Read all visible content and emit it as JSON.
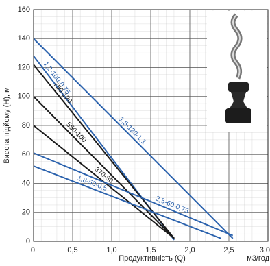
{
  "chart_data": {
    "type": "line",
    "y_label": "Висота підйому (H), м",
    "x_label": "Продуктивність (Q)",
    "x_unit": "м3/год",
    "xlim": [
      0,
      3.0
    ],
    "xticks": [
      0,
      {
        "value": 0.5,
        "label": "0,5"
      },
      {
        "value": 1.0,
        "label": "1,0"
      },
      {
        "value": 1.5,
        "label": "1,5"
      },
      {
        "value": 2.0,
        "label": "2,0"
      },
      {
        "value": 2.5,
        "label": "2,5"
      },
      {
        "value": 3.0,
        "label": "3,0"
      }
    ],
    "ylim": [
      0,
      160
    ],
    "yticks": [
      0,
      20,
      40,
      60,
      80,
      100,
      120,
      140,
      160
    ],
    "grid": true,
    "series": [
      {
        "name": "1,5-120-1,1",
        "color": "#2b62ad",
        "x": [
          0,
          2.55
        ],
        "values": [
          140,
          2
        ]
      },
      {
        "name": "1,2-100-0,75",
        "color": "#2b62ad",
        "x": [
          0,
          1.8
        ],
        "values": [
          128,
          1
        ]
      },
      {
        "name": "750-120",
        "color": "#1a1a1a",
        "x": [
          0,
          1.8
        ],
        "values": [
          122,
          2
        ]
      },
      {
        "name": "550-100",
        "color": "#1a1a1a",
        "x": [
          0,
          1.8
        ],
        "values": [
          100,
          2
        ]
      },
      {
        "name": "370-80",
        "color": "#1a1a1a",
        "x": [
          0,
          1.8
        ],
        "values": [
          80,
          2
        ]
      },
      {
        "name": "2,5-60-0,75",
        "color": "#2b62ad",
        "x": [
          0,
          2.55
        ],
        "values": [
          61,
          4
        ]
      },
      {
        "name": "1,8-50-0,5",
        "color": "#2b62ad",
        "x": [
          0,
          2.4
        ],
        "values": [
          52,
          2
        ]
      }
    ]
  }
}
